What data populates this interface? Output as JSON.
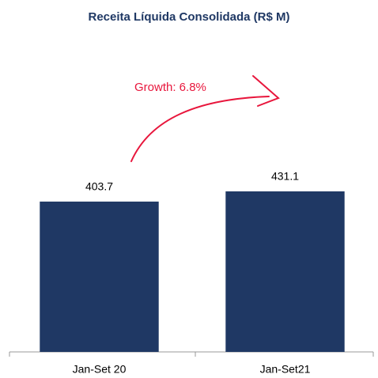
{
  "chart_data": {
    "type": "bar",
    "title": "Receita Líquida Consolidada (R$ M)",
    "categories": [
      "Jan-Set 20",
      "Jan-Set21"
    ],
    "values": [
      403.7,
      431.1
    ],
    "color": "#1f3864",
    "annotation": "Growth: 6.8%",
    "annotation_color": "#e8163c"
  }
}
